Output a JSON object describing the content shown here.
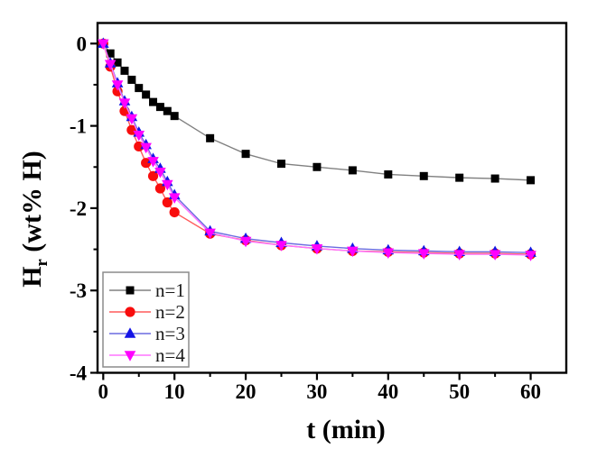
{
  "figure": {
    "background": "#ffffff",
    "frame_color": "#000000"
  },
  "chart_data": {
    "type": "line",
    "xlabel": "t (min)",
    "ylabel_parts": {
      "base": "H",
      "sub": "r",
      "rest": " (wt% H)"
    },
    "ylabel_full": "Hr (wt% H)",
    "xlim": [
      -0.8,
      65
    ],
    "ylim": [
      -4,
      0.25
    ],
    "grid": false,
    "x_major_ticks": [
      0,
      10,
      20,
      30,
      40,
      50,
      60
    ],
    "x_tick_labels": [
      "0",
      "10",
      "20",
      "30",
      "40",
      "50",
      "60"
    ],
    "x_minor_ticks": [
      5,
      15,
      25,
      35,
      45,
      55
    ],
    "y_major_ticks": [
      0,
      -1,
      -2,
      -3,
      -4
    ],
    "y_tick_labels": [
      "0",
      "-1",
      "-2",
      "-3",
      "-4"
    ],
    "y_minor_ticks": [
      -0.5,
      -1.5,
      -2.5,
      -3.5
    ],
    "legend": {
      "position": "lower-left",
      "border_color": "#8c8c8c",
      "text_color": "#1a1a1a"
    },
    "x": [
      0,
      1,
      2,
      3,
      4,
      5,
      6,
      7,
      8,
      9,
      10,
      15,
      20,
      25,
      30,
      35,
      40,
      45,
      50,
      55,
      60
    ],
    "series": [
      {
        "name": "n=1",
        "marker": "square",
        "marker_color": "#000000",
        "line_color": "#808080",
        "values": [
          0,
          -0.12,
          -0.23,
          -0.33,
          -0.44,
          -0.54,
          -0.62,
          -0.71,
          -0.77,
          -0.82,
          -0.88,
          -1.15,
          -1.34,
          -1.46,
          -1.5,
          -1.54,
          -1.59,
          -1.61,
          -1.63,
          -1.64,
          -1.66
        ]
      },
      {
        "name": "n=2",
        "marker": "circle",
        "marker_color": "#f80d0d",
        "line_color": "#ff5c5c",
        "values": [
          0,
          -0.28,
          -0.58,
          -0.82,
          -1.05,
          -1.25,
          -1.45,
          -1.61,
          -1.76,
          -1.93,
          -2.05,
          -2.31,
          -2.39,
          -2.45,
          -2.49,
          -2.52,
          -2.53,
          -2.54,
          -2.55,
          -2.55,
          -2.56
        ]
      },
      {
        "name": "n=3",
        "marker": "triangle-up",
        "marker_color": "#1414e6",
        "line_color": "#6a6ae0",
        "values": [
          0,
          -0.24,
          -0.48,
          -0.7,
          -0.89,
          -1.08,
          -1.23,
          -1.4,
          -1.52,
          -1.68,
          -1.84,
          -2.28,
          -2.37,
          -2.42,
          -2.46,
          -2.49,
          -2.51,
          -2.52,
          -2.53,
          -2.53,
          -2.54
        ]
      },
      {
        "name": "n=4",
        "marker": "triangle-down",
        "marker_color": "#ff00ff",
        "line_color": "#ff73ff",
        "values": [
          0,
          -0.25,
          -0.5,
          -0.72,
          -0.91,
          -1.11,
          -1.26,
          -1.43,
          -1.56,
          -1.71,
          -1.87,
          -2.3,
          -2.4,
          -2.45,
          -2.49,
          -2.52,
          -2.54,
          -2.55,
          -2.56,
          -2.56,
          -2.57
        ]
      }
    ]
  }
}
